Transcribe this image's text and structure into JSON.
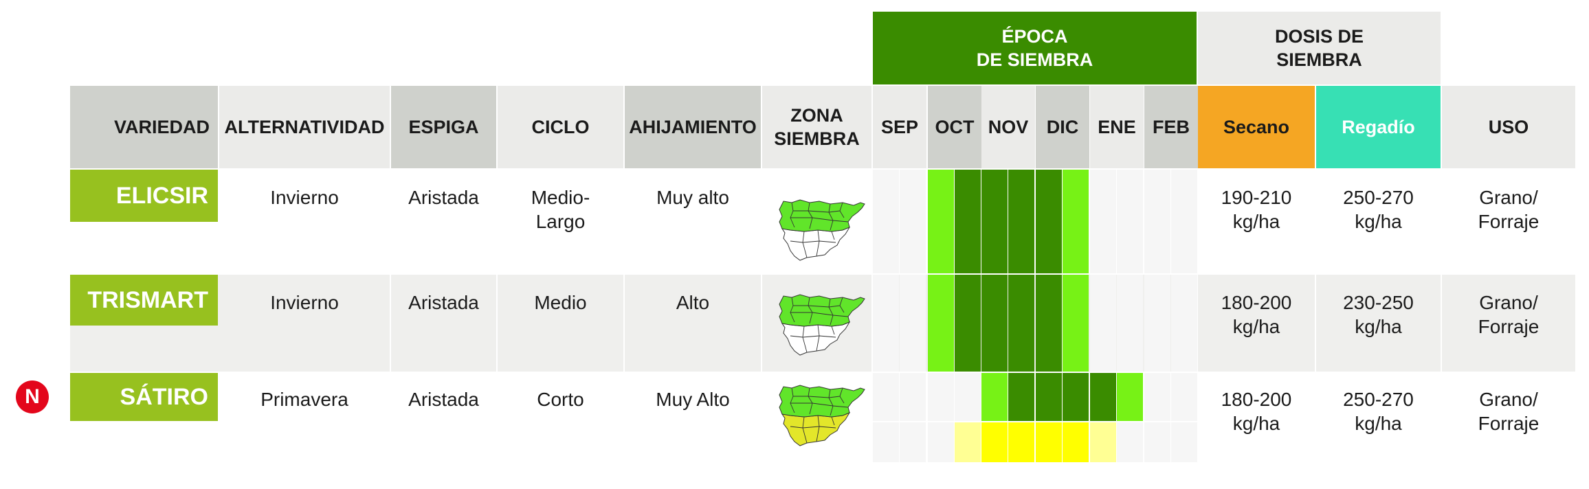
{
  "header": {
    "epoca_title": "ÉPOCA\nDE SIEMBRA",
    "dosis_title": "DOSIS DE\nSIEMBRA",
    "columns": {
      "variedad": "VARIEDAD",
      "alternatividad": "ALTERNATIVIDAD",
      "espiga": "ESPIGA",
      "ciclo": "CICLO",
      "ahijamiento": "AHIJAMIENTO",
      "zona": "ZONA\nSIEMBRA",
      "secano": "Secano",
      "regadio": "Regadío",
      "uso": "USO"
    },
    "months": [
      "SEP",
      "OCT",
      "NOV",
      "DIC",
      "ENE",
      "FEB"
    ]
  },
  "rows": [
    {
      "variedad": "ELICSIR",
      "alternatividad": "Invierno",
      "espiga": "Aristada",
      "ciclo": "Medio-\nLargo",
      "ahijamiento": "Muy alto",
      "secano": "190-210\nkg/ha",
      "regadio": "250-270\nkg/ha",
      "uso": "Grano/\nForraje",
      "is_new": false
    },
    {
      "variedad": "TRISMART",
      "alternatividad": "Invierno",
      "espiga": "Aristada",
      "ciclo": "Medio",
      "ahijamiento": "Alto",
      "secano": "180-200\nkg/ha",
      "regadio": "230-250\nkg/ha",
      "uso": "Grano/\nForraje",
      "is_new": false
    },
    {
      "variedad": "SÁTIRO",
      "alternatividad": "Primavera",
      "espiga": "Aristada",
      "ciclo": "Corto",
      "ahijamiento": "Muy Alto",
      "secano": "180-200\nkg/ha",
      "regadio": "250-270\nkg/ha",
      "uso": "Grano/\nForraje",
      "is_new": true
    }
  ],
  "new_badge": "N",
  "colors": {
    "epoca_header": "#3a8c00",
    "header_gray": "#cfd1cc",
    "header_light": "#ebebe9",
    "variety_green": "#97c11f",
    "secano": "#f5a623",
    "regadio": "#37e0b4",
    "dark_green": "#3a8c00",
    "light_green": "#77f216",
    "yellow": "#ffff00",
    "light_yellow": "#ffff94",
    "badge_red": "#e3061b"
  }
}
